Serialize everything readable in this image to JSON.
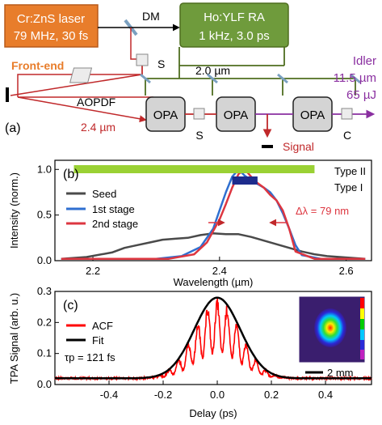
{
  "panel_a": {
    "panel_label": "(a)",
    "laser_line1": "Cr:ZnS laser",
    "laser_line2": "79 MHz, 30 fs",
    "dm": "DM",
    "ra_line1": "Ho:YLF RA",
    "ra_line2": "1 kHz, 3.0 ps",
    "front_end": "Front-end",
    "aopdf": "AOPDF",
    "pump_wavelength": "2.0 µm",
    "seed_wavelength": "2.4 µm",
    "opa": "OPA",
    "stretcher_s": "S",
    "compressor_c": "C",
    "signal": "Signal",
    "idler_label": "Idler",
    "idler_wavelength": "11.5 µm",
    "idler_energy": "65 µJ",
    "colors": {
      "laser_box": "#e87d2b",
      "ra_box": "#6f9b3c",
      "red_beam": "#c0282a",
      "pump_beam": "#4f6e1f",
      "idler_beam": "#8a2fa0"
    }
  },
  "chart_data": [
    {
      "type": "line",
      "panel_label": "(b)",
      "xlabel": "Wavelength (µm)",
      "ylabel": "Intensity (norm.)",
      "xlim": [
        2.14,
        2.64
      ],
      "ylim": [
        0,
        1.1
      ],
      "xticks": [
        "2.2",
        "2.4",
        "2.6"
      ],
      "yticks": [
        "0.0",
        "0.5",
        "1.0"
      ],
      "legend_position": "left",
      "series": [
        {
          "name": "Seed",
          "color": "#4a4a4a",
          "x": [
            2.15,
            2.19,
            2.23,
            2.25,
            2.27,
            2.29,
            2.31,
            2.33,
            2.35,
            2.37,
            2.39,
            2.41,
            2.43,
            2.45,
            2.47,
            2.49,
            2.51,
            2.53,
            2.55,
            2.57,
            2.59,
            2.61,
            2.63
          ],
          "y": [
            0.02,
            0.04,
            0.09,
            0.14,
            0.17,
            0.2,
            0.23,
            0.24,
            0.25,
            0.28,
            0.3,
            0.29,
            0.29,
            0.26,
            0.22,
            0.18,
            0.14,
            0.1,
            0.07,
            0.05,
            0.04,
            0.03,
            0.02
          ]
        },
        {
          "name": "1st stage",
          "color": "#2f6fd0",
          "x": [
            2.15,
            2.3,
            2.34,
            2.37,
            2.39,
            2.4,
            2.41,
            2.42,
            2.43,
            2.44,
            2.45,
            2.46,
            2.47,
            2.48,
            2.49,
            2.5,
            2.51,
            2.52,
            2.53,
            2.56,
            2.63
          ],
          "y": [
            0.02,
            0.02,
            0.05,
            0.15,
            0.35,
            0.55,
            0.75,
            0.92,
            1.0,
            0.93,
            0.88,
            0.84,
            0.8,
            0.75,
            0.66,
            0.52,
            0.35,
            0.17,
            0.06,
            0.02,
            0.02
          ]
        },
        {
          "name": "2nd stage",
          "color": "#dd3640",
          "x": [
            2.15,
            2.32,
            2.36,
            2.38,
            2.4,
            2.41,
            2.42,
            2.43,
            2.44,
            2.45,
            2.46,
            2.47,
            2.48,
            2.49,
            2.5,
            2.51,
            2.52,
            2.55,
            2.63
          ],
          "y": [
            0.02,
            0.02,
            0.07,
            0.2,
            0.45,
            0.62,
            0.8,
            0.95,
            1.0,
            0.92,
            0.85,
            0.8,
            0.72,
            0.66,
            0.55,
            0.35,
            0.1,
            0.02,
            0.02
          ]
        }
      ],
      "phase_matching_bars": [
        {
          "label": "Type II",
          "x_start": 2.17,
          "x_end": 2.55,
          "color": "#9ad134"
        },
        {
          "label": "Type I",
          "x_start": 2.42,
          "x_end": 2.46,
          "color": "#1d2b8c"
        }
      ],
      "annotation": "Δλ = 79 nm"
    },
    {
      "type": "line",
      "panel_label": "(c)",
      "xlabel": "Delay (ps)",
      "ylabel": "TPA Signal (arb. u.)",
      "xlim": [
        -0.6,
        0.57
      ],
      "ylim": [
        0,
        0.3
      ],
      "xticks": [
        "-0.4",
        "-0.2",
        "0.0",
        "0.2",
        "0.4"
      ],
      "yticks": [
        "0.0",
        "0.1",
        "0.2",
        "0.3"
      ],
      "legend_position": "left",
      "series": [
        {
          "name": "ACF",
          "color": "#ff0000",
          "style": "oscillating interferometric trace",
          "peak": 0.28,
          "baseline": 0.02
        },
        {
          "name": "Fit",
          "color": "#000000",
          "style": "gaussian envelope",
          "peak": 0.28,
          "fwhm_ps": 0.2,
          "baseline": 0.02
        }
      ],
      "annotation": "τp = 121 fs",
      "inset": {
        "scale_bar": "2 mm"
      }
    }
  ]
}
